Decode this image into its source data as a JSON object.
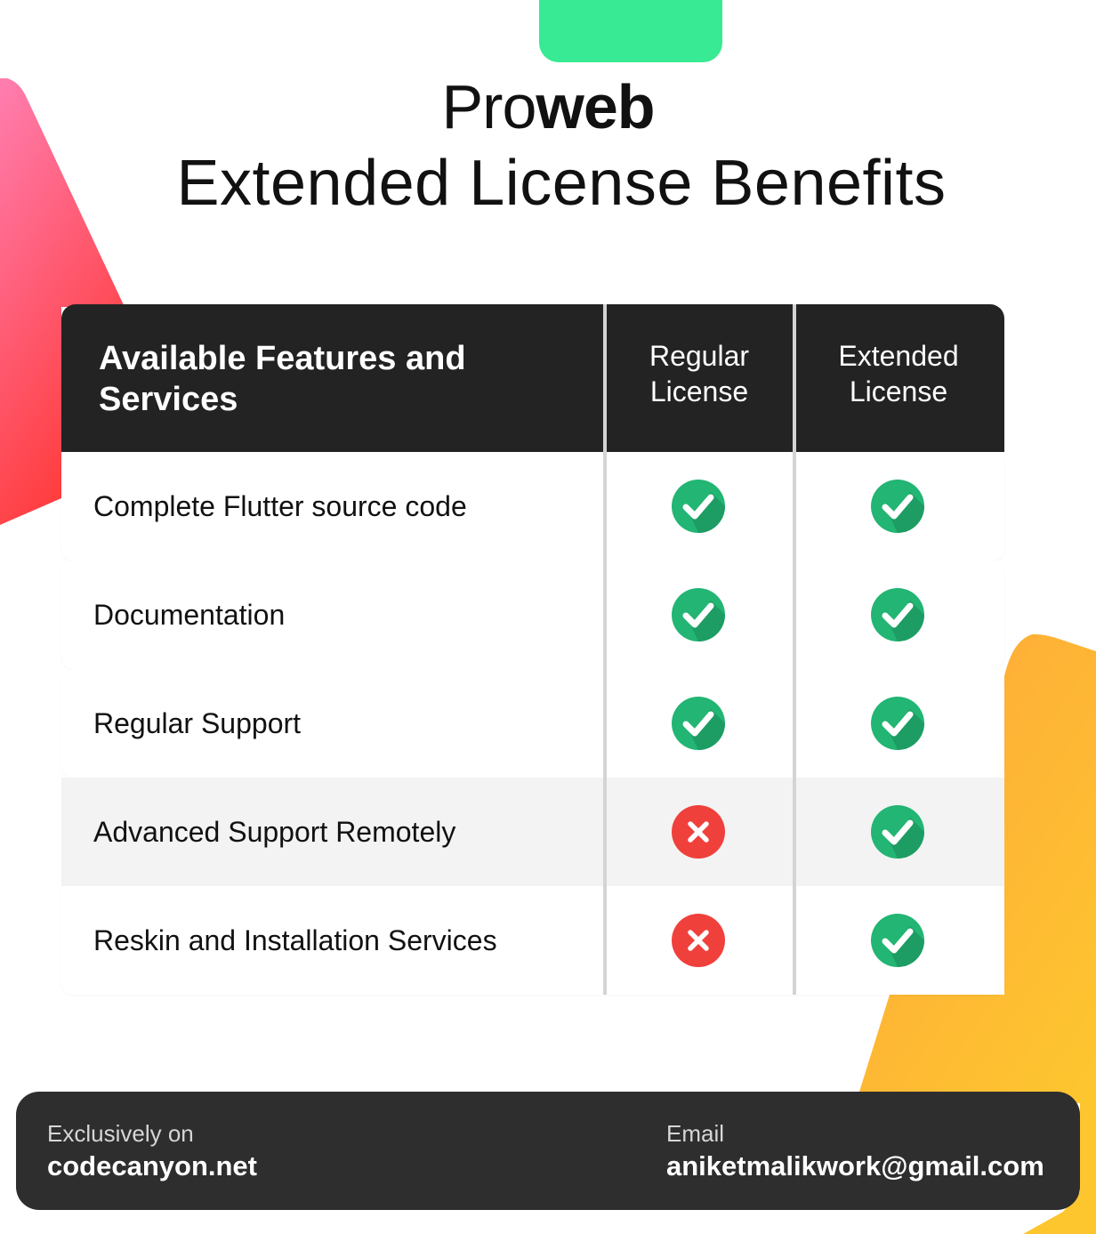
{
  "brand": {
    "light": "Pro",
    "bold": "web"
  },
  "headline": "Extended License Benefits",
  "table": {
    "feature_header": "Available Features and Services",
    "columns": [
      "Regular License",
      "Extended License"
    ],
    "rows": [
      {
        "label": "Complete Flutter source code",
        "regular": true,
        "extended": true
      },
      {
        "label": "Documentation",
        "regular": true,
        "extended": true
      },
      {
        "label": "Regular Support",
        "regular": true,
        "extended": true
      },
      {
        "label": "Advanced Support Remotely",
        "regular": false,
        "extended": true
      },
      {
        "label": "Reskin and Installation Services",
        "regular": false,
        "extended": true
      }
    ]
  },
  "footer": {
    "left_caption": "Exclusively on",
    "left_value": "codecanyon.net",
    "right_caption": "Email",
    "right_value": "aniketmalikwork@gmail.com"
  },
  "colors": {
    "accent_green": "#37ea93",
    "check_green": "#22b573",
    "cross_red": "#f0403c",
    "header_dark": "#232323",
    "footer_dark": "#2e2e2e"
  },
  "icons": {
    "yes": "check-circle-icon",
    "no": "cross-circle-icon"
  }
}
